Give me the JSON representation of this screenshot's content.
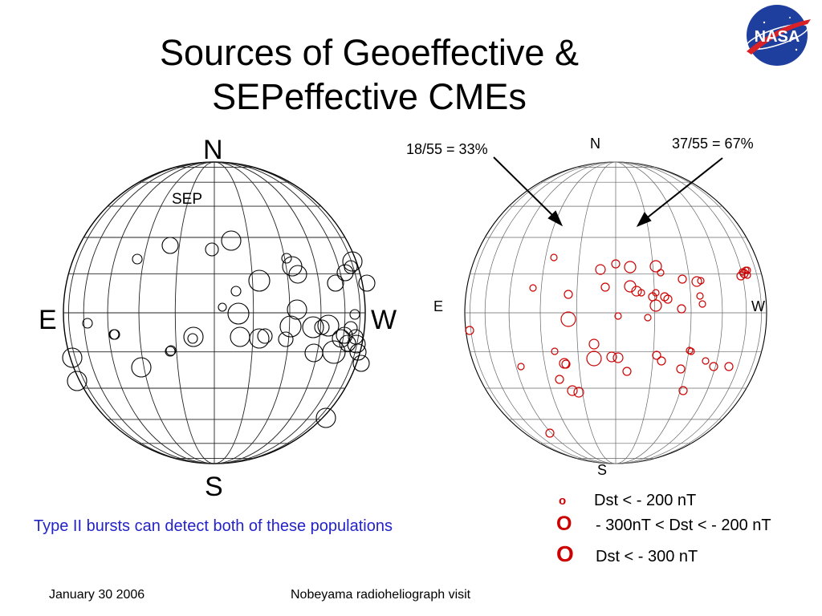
{
  "title_line1": "Sources of Geoeffective &",
  "title_line2": "SEPeffective CMEs",
  "logo_text": "NASA",
  "left_globe": {
    "north": "N",
    "south": "S",
    "east": "E",
    "west": "W",
    "sep_label": "SEP"
  },
  "right_globe": {
    "north": "N",
    "south": "S",
    "east": "E",
    "west": "W",
    "east_fraction": "18/55 = 33%",
    "west_fraction": "37/55 = 67%"
  },
  "caption": "Type II bursts can detect both of these populations",
  "legend": [
    {
      "marker": "o",
      "label": "Dst < - 200 nT"
    },
    {
      "marker": "O",
      "label": "- 300nT < Dst < - 200 nT"
    },
    {
      "marker": "O",
      "label": "Dst < - 300 nT"
    }
  ],
  "footer_date": "January 30 2006",
  "footer_event": "Nobeyama radioheliograph visit",
  "colors": {
    "marker_red": "#cc0000",
    "caption_blue": "#2323c8",
    "nasa_blue": "#1f3f9e",
    "nasa_red": "#d92128"
  }
}
